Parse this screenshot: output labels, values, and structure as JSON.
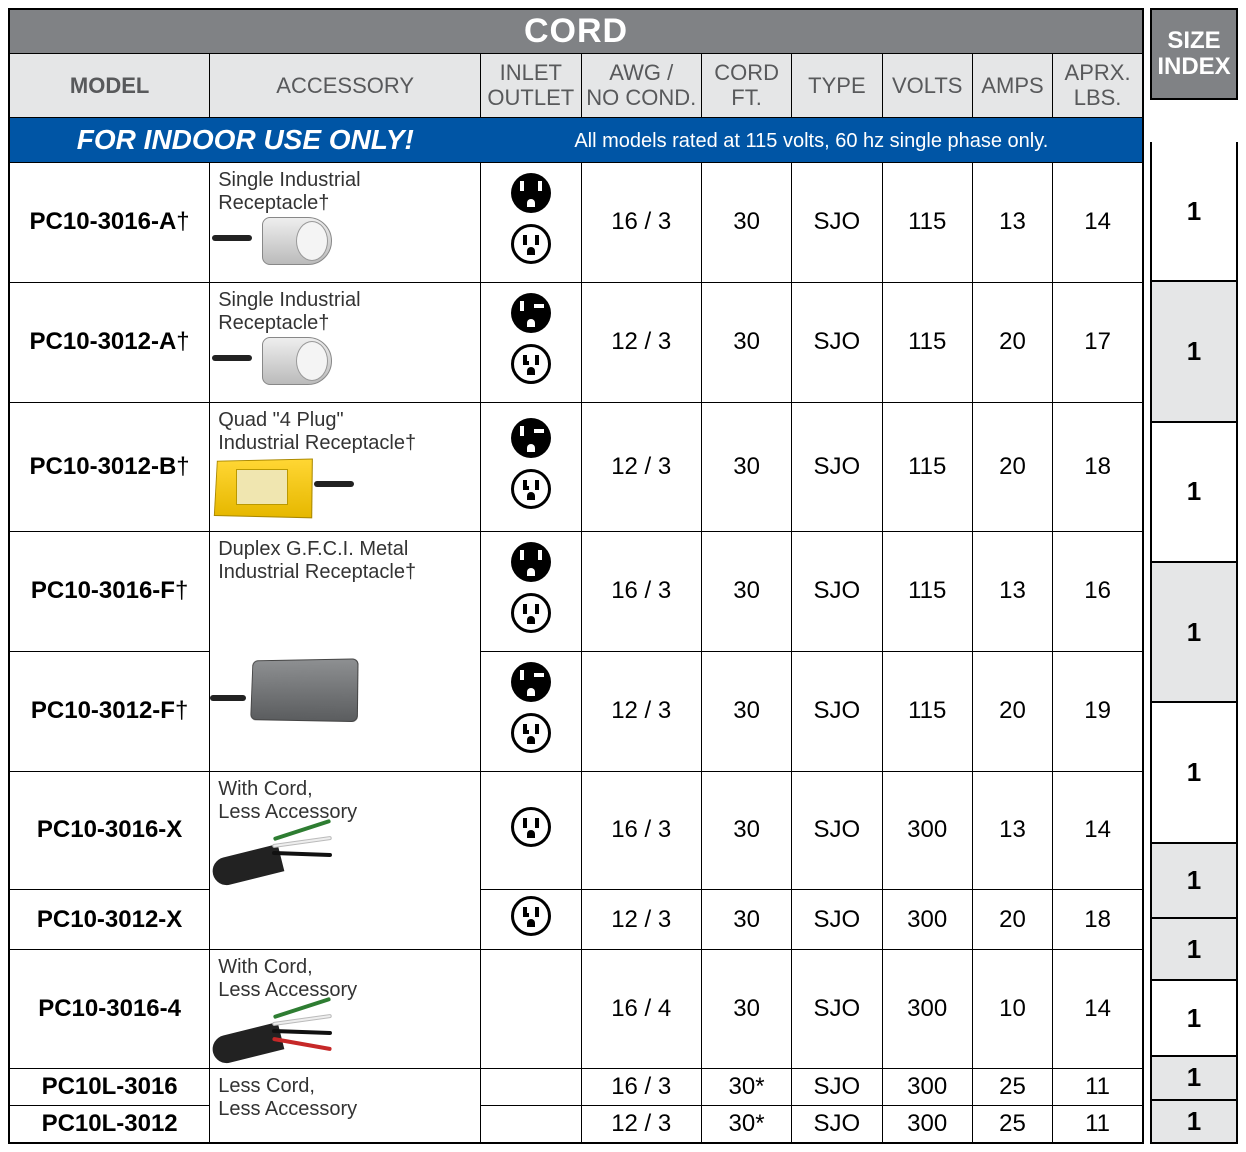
{
  "table": {
    "title": "CORD",
    "columns": {
      "model": "MODEL",
      "accessory": "ACCESSORY",
      "inlet_outlet": "INLET\nOUTLET",
      "awg": "AWG /\nNO COND.",
      "cord_ft": "CORD\nFT.",
      "type": "TYPE",
      "volts": "VOLTS",
      "amps": "AMPS",
      "lbs": "APRX.\nLBS."
    },
    "banner": {
      "left": "FOR INDOOR USE ONLY!",
      "right": "All models rated at 115 volts, 60 hz single phase only."
    },
    "rows": [
      {
        "model": "PC10-3016-A",
        "dagger": true,
        "accessory": "Single Industrial\nReceptacle†",
        "acc_img": "receptacle",
        "outlets": [
          "filled",
          "outline"
        ],
        "awg": "16 / 3",
        "cord_ft": "30",
        "type": "SJO",
        "volts": "115",
        "amps": "13",
        "lbs": "14",
        "size_index": "1",
        "row_class": "r-tall"
      },
      {
        "model": "PC10-3012-A",
        "dagger": true,
        "accessory": "Single Industrial\nReceptacle†",
        "acc_img": "receptacle",
        "outlets": [
          "filled-wide",
          "outline-hook"
        ],
        "awg": "12 / 3",
        "cord_ft": "30",
        "type": "SJO",
        "volts": "115",
        "amps": "20",
        "lbs": "17",
        "size_index": "1",
        "row_class": "r-tall",
        "shade": true
      },
      {
        "model": "PC10-3012-B",
        "dagger": true,
        "accessory": "Quad \"4 Plug\"\nIndustrial Receptacle†",
        "acc_img": "quadbox",
        "outlets": [
          "filled-wide",
          "outline-hook"
        ],
        "awg": "12 / 3",
        "cord_ft": "30",
        "type": "SJO",
        "volts": "115",
        "amps": "20",
        "lbs": "18",
        "size_index": "1",
        "row_class": "r-tall"
      },
      {
        "model": "PC10-3016-F",
        "dagger": true,
        "accessory": "Duplex G.F.C.I. Metal\nIndustrial Receptacle†",
        "acc_img": "",
        "outlets": [
          "filled",
          "outline"
        ],
        "awg": "16 / 3",
        "cord_ft": "30",
        "type": "SJO",
        "volts": "115",
        "amps": "13",
        "lbs": "16",
        "size_index": "1",
        "row_class": "r-tall",
        "shade": true,
        "acc_border_off_bottom": true
      },
      {
        "model": "PC10-3012-F",
        "dagger": true,
        "accessory": "",
        "acc_img": "metalbox",
        "outlets": [
          "filled-wide",
          "outline-hook"
        ],
        "awg": "12 / 3",
        "cord_ft": "30",
        "type": "SJO",
        "volts": "115",
        "amps": "20",
        "lbs": "19",
        "size_index": "1",
        "row_class": "r-tall",
        "acc_border_off_top": true
      },
      {
        "model": "PC10-3016-X",
        "dagger": false,
        "accessory": "With Cord,\nLess Accessory",
        "acc_img": "wires3",
        "outlets": [
          "outline"
        ],
        "awg": "16 / 3",
        "cord_ft": "30",
        "type": "SJO",
        "volts": "300",
        "amps": "13",
        "lbs": "14",
        "size_index": "1",
        "row_class": "r-mid",
        "shade": true,
        "acc_border_off_bottom": true
      },
      {
        "model": "PC10-3012-X",
        "dagger": false,
        "accessory": "",
        "acc_img": "",
        "outlets": [
          "outline-hook"
        ],
        "awg": "12 / 3",
        "cord_ft": "30",
        "type": "SJO",
        "volts": "300",
        "amps": "20",
        "lbs": "18",
        "size_index": "1",
        "row_class": "r-short",
        "shade": true,
        "acc_border_off_top": true
      },
      {
        "model": "PC10-3016-4",
        "dagger": false,
        "accessory": "With Cord,\nLess Accessory",
        "acc_img": "wires4",
        "outlets": [],
        "awg": "16 / 4",
        "cord_ft": "30",
        "type": "SJO",
        "volts": "300",
        "amps": "10",
        "lbs": "14",
        "size_index": "1",
        "row_class": "r-mid"
      },
      {
        "model": "PC10L-3016",
        "dagger": false,
        "accessory": "Less Cord,\nLess Accessory",
        "acc_img": "",
        "outlets": [],
        "awg": "16 / 3",
        "cord_ft": "30*",
        "type": "SJO",
        "volts": "300",
        "amps": "25",
        "lbs": "11",
        "size_index": "1",
        "row_class": "r-thin",
        "shade": true,
        "acc_rowspan": 2
      },
      {
        "model": "PC10L-3012",
        "dagger": false,
        "accessory": null,
        "acc_img": "",
        "outlets": [],
        "awg": "12 / 3",
        "cord_ft": "30*",
        "type": "SJO",
        "volts": "300",
        "amps": "25",
        "lbs": "11",
        "size_index": "1",
        "row_class": "r-thin",
        "shade": true
      }
    ]
  },
  "side": {
    "header": "SIZE\nINDEX"
  },
  "colors": {
    "header_bg": "#808285",
    "header_fg": "#ffffff",
    "subhead_bg": "#e5e6e7",
    "subhead_fg": "#58595b",
    "banner_bg": "#0055a5",
    "banner_fg": "#ffffff",
    "border": "#000000"
  }
}
